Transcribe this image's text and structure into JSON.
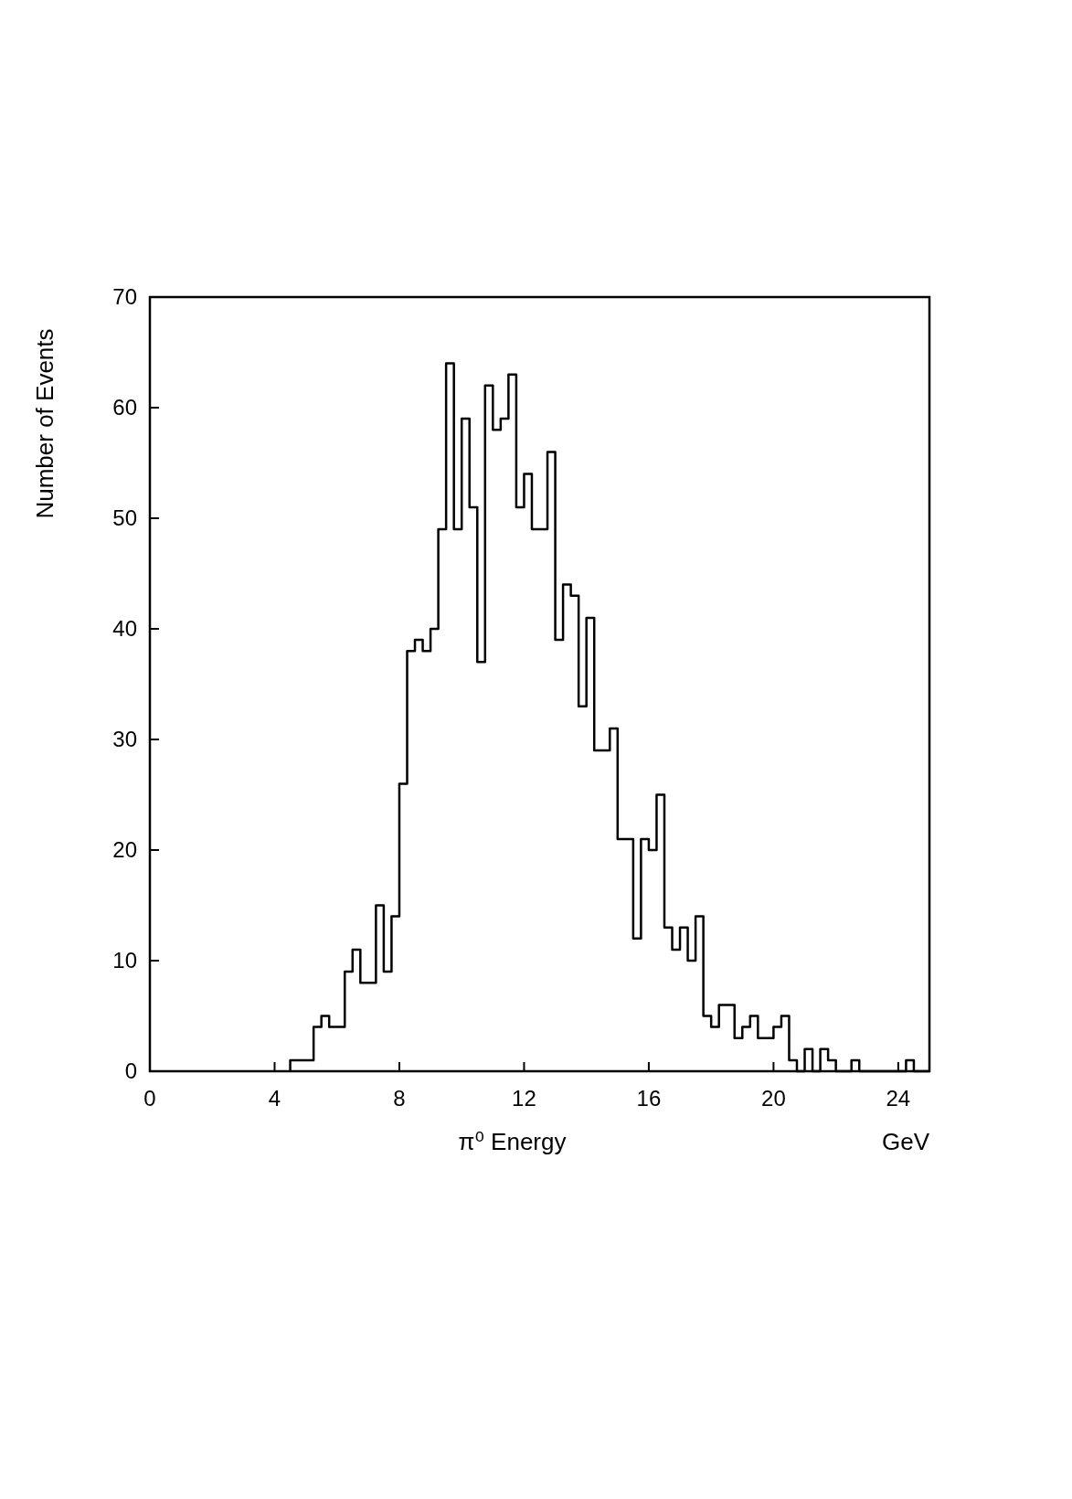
{
  "chart_data": {
    "type": "histogram",
    "xlabel": "π⁰ Energy",
    "ylabel": "Number of Events",
    "annotations": [
      "GeV"
    ],
    "bins": [
      4.5,
      4.75,
      5,
      5.25,
      5.5,
      5.75,
      6,
      6.25,
      6.5,
      6.75,
      7,
      7.25,
      7.5,
      7.75,
      8,
      8.25,
      8.5,
      8.75,
      9,
      9.25,
      9.5,
      9.75,
      10,
      10.25,
      10.5,
      10.75,
      11,
      11.25,
      11.5,
      11.75,
      12,
      12.25,
      12.5,
      12.75,
      13,
      13.25,
      13.5,
      13.75,
      14,
      14.25,
      14.5,
      14.75,
      15,
      15.25,
      15.5,
      15.75,
      16,
      16.25,
      16.5,
      16.75,
      17,
      17.25,
      17.5,
      17.75,
      18,
      18.25,
      18.5,
      18.75,
      19,
      19.25,
      19.5,
      19.75,
      20,
      20.25,
      20.5,
      20.75,
      21,
      21.25,
      21.5,
      21.75,
      22,
      22.25,
      22.5,
      22.75,
      23,
      23.25,
      23.5,
      23.75,
      24,
      24.25,
      24.5,
      24.75,
      25
    ],
    "values": [
      1,
      1,
      1,
      4,
      5,
      4,
      4,
      9,
      11,
      8,
      8,
      15,
      9,
      14,
      26,
      38,
      39,
      38,
      40,
      49,
      64,
      49,
      59,
      51,
      37,
      62,
      58,
      59,
      63,
      51,
      54,
      49,
      49,
      56,
      39,
      44,
      43,
      33,
      41,
      29,
      29,
      31,
      21,
      21,
      12,
      21,
      20,
      25,
      13,
      11,
      13,
      10,
      14,
      5,
      4,
      6,
      6,
      3,
      4,
      5,
      3,
      3,
      4,
      5,
      1,
      0,
      2,
      0,
      2,
      1,
      0,
      0,
      1,
      0,
      0,
      0,
      0,
      0,
      0,
      1,
      0,
      0
    ],
    "color": "#000000",
    "xlim": [
      0,
      25
    ],
    "ylim": [
      0,
      70
    ],
    "xticks": [
      0,
      4,
      8,
      12,
      16,
      20,
      24
    ],
    "yticks": [
      0,
      10,
      20,
      30,
      40,
      50,
      60,
      70
    ],
    "grid": false
  }
}
